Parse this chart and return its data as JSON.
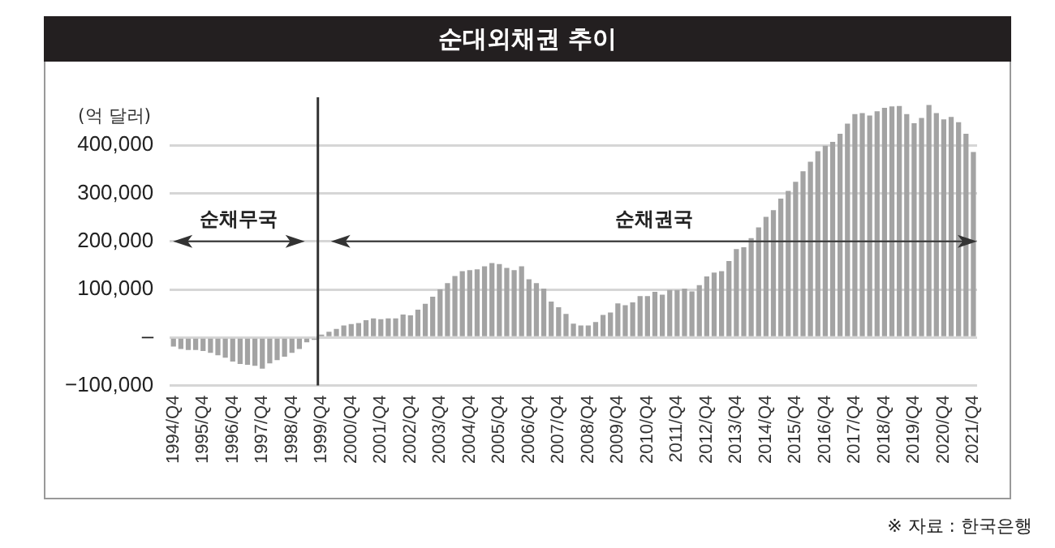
{
  "chart_data": {
    "type": "bar",
    "title": "순대외채권 추이",
    "ylabel": "(억 달러)",
    "categories": [
      "1994/Q4",
      null,
      null,
      null,
      "1995/Q4",
      null,
      null,
      null,
      "1996/Q4",
      null,
      null,
      null,
      "1997/Q4",
      null,
      null,
      null,
      "1998/Q4",
      null,
      null,
      null,
      "1999/Q4",
      null,
      null,
      null,
      "2000/Q4",
      null,
      null,
      null,
      "2001/Q4",
      null,
      null,
      null,
      "2002/Q4",
      null,
      null,
      null,
      "2003/Q4",
      null,
      null,
      null,
      "2004/Q4",
      null,
      null,
      null,
      "2005/Q4",
      null,
      null,
      null,
      "2006/Q4",
      null,
      null,
      null,
      "2007/Q4",
      null,
      null,
      null,
      "2008/Q4",
      null,
      null,
      null,
      "2009/Q4",
      null,
      null,
      null,
      "2010/Q4",
      null,
      null,
      null,
      "2011/Q4",
      null,
      null,
      null,
      "2012/Q4",
      null,
      null,
      null,
      "2013/Q4",
      null,
      null,
      null,
      "2014/Q4",
      null,
      null,
      null,
      "2015/Q4",
      null,
      null,
      null,
      "2016/Q4",
      null,
      null,
      null,
      "2017/Q4",
      null,
      null,
      null,
      "2018/Q4",
      null,
      null,
      null,
      "2019/Q4",
      null,
      null,
      null,
      "2020/Q4",
      null,
      null,
      null,
      "2021/Q4"
    ],
    "values": [
      -19000,
      -24000,
      -26000,
      -26000,
      -28000,
      -32000,
      -37000,
      -42000,
      -50000,
      -55000,
      -57000,
      -59000,
      -65000,
      -54000,
      -47000,
      -40000,
      -32000,
      -24000,
      -10000,
      -5000,
      6000,
      12000,
      18000,
      25000,
      28000,
      30000,
      36000,
      40000,
      38000,
      40000,
      40000,
      48000,
      46000,
      58000,
      70000,
      85000,
      100000,
      113000,
      128000,
      138000,
      140000,
      142000,
      148000,
      155000,
      153000,
      145000,
      140000,
      148000,
      121000,
      113000,
      102000,
      75000,
      63000,
      49000,
      29000,
      25000,
      25000,
      32000,
      47000,
      52000,
      71000,
      67000,
      73000,
      86000,
      86000,
      95000,
      89000,
      99000,
      99000,
      102000,
      96000,
      109000,
      127000,
      135000,
      138000,
      159000,
      184000,
      188000,
      207000,
      229000,
      251000,
      265000,
      289000,
      305000,
      324000,
      346000,
      366000,
      388000,
      399000,
      407000,
      424000,
      445000,
      465000,
      467000,
      462000,
      471000,
      478000,
      481000,
      482000,
      465000,
      446000,
      457000,
      484000,
      467000,
      454000,
      459000,
      448000,
      424000,
      386000
    ],
    "color": "#a3a3a3",
    "ylim": [
      -100000,
      500000
    ],
    "yticks": [
      {
        "value": -100000,
        "label": "−100,000"
      },
      {
        "value": 0,
        "label": "–"
      },
      {
        "value": 100000,
        "label": "100,000"
      },
      {
        "value": 200000,
        "label": "200,000"
      },
      {
        "value": 300000,
        "label": "300,000"
      },
      {
        "value": 400000,
        "label": "400,000"
      }
    ],
    "grid": "y",
    "ref_lines": [
      {
        "axis": "x",
        "value": "1999/Q4",
        "color": "#333333"
      }
    ],
    "annotations": [
      "순채무국",
      "순채권국",
      "※ 자료 : 한국은행"
    ]
  }
}
